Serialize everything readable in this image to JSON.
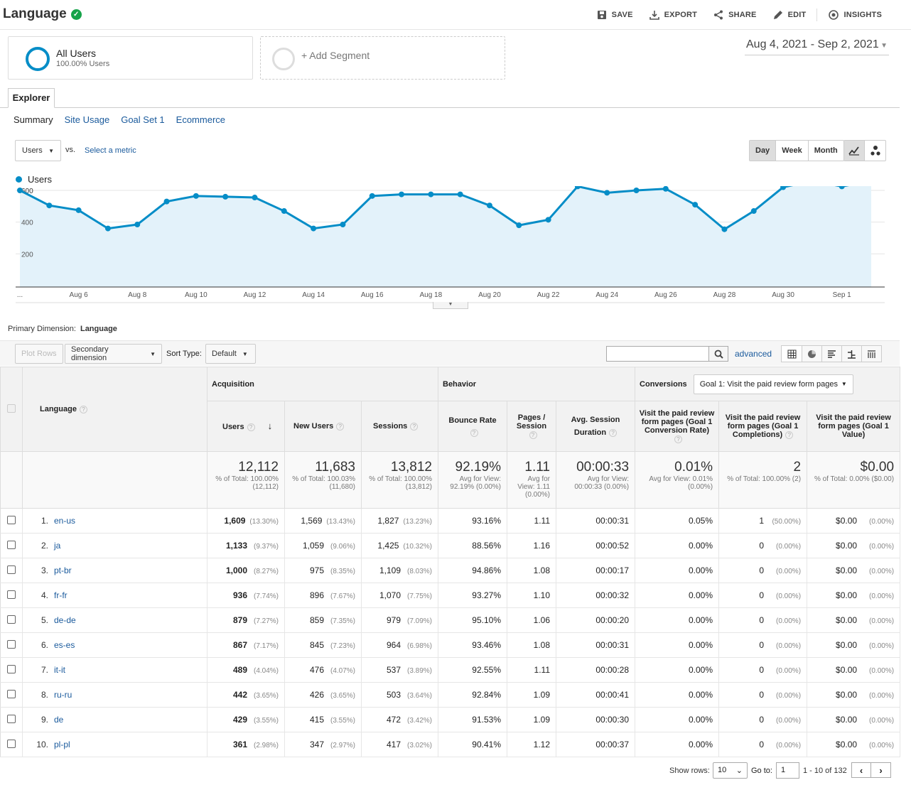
{
  "header": {
    "title": "Language",
    "actions": {
      "save": "SAVE",
      "export": "EXPORT",
      "share": "SHARE",
      "edit": "EDIT",
      "insights": "INSIGHTS"
    }
  },
  "segments": {
    "all_users": "All Users",
    "all_users_pct": "100.00% Users",
    "add": "+ Add Segment"
  },
  "date_range": "Aug 4, 2021 - Sep 2, 2021",
  "tabs": {
    "explorer": "Explorer",
    "sub": [
      "Summary",
      "Site Usage",
      "Goal Set 1",
      "Ecommerce"
    ]
  },
  "metric": {
    "selected": "Users",
    "vs": "vs.",
    "select": "Select a metric"
  },
  "period": [
    "Day",
    "Week",
    "Month"
  ],
  "chart_data": {
    "type": "line",
    "series": [
      {
        "name": "Users",
        "values": [
          600,
          505,
          475,
          360,
          385,
          530,
          565,
          560,
          555,
          470,
          360,
          385,
          565,
          575,
          575,
          575,
          505,
          380,
          415,
          625,
          585,
          600,
          610,
          510,
          355,
          470,
          620,
          660,
          625,
          660
        ]
      }
    ],
    "x": [
      "Aug 4",
      "Aug 5",
      "Aug 6",
      "Aug 7",
      "Aug 8",
      "Aug 9",
      "Aug 10",
      "Aug 11",
      "Aug 12",
      "Aug 13",
      "Aug 14",
      "Aug 15",
      "Aug 16",
      "Aug 17",
      "Aug 18",
      "Aug 19",
      "Aug 20",
      "Aug 21",
      "Aug 22",
      "Aug 23",
      "Aug 24",
      "Aug 25",
      "Aug 26",
      "Aug 27",
      "Aug 28",
      "Aug 29",
      "Aug 30",
      "Aug 31",
      "Sep 1",
      "Sep 2"
    ],
    "xticks": [
      "...",
      "Aug 6",
      "Aug 8",
      "Aug 10",
      "Aug 12",
      "Aug 14",
      "Aug 16",
      "Aug 18",
      "Aug 20",
      "Aug 22",
      "Aug 24",
      "Aug 26",
      "Aug 28",
      "Aug 30",
      "Sep 1"
    ],
    "yticks": [
      "600",
      "400",
      "200"
    ],
    "ylim": [
      0,
      600
    ],
    "color": "#058dc7",
    "fill": "#e3f2fa"
  },
  "toolbar": {
    "plot_rows": "Plot Rows",
    "secondary": "Secondary dimension",
    "sort_type": "Sort Type:",
    "sort_default": "Default",
    "advanced": "advanced"
  },
  "primary_dimension": {
    "label": "Primary Dimension:",
    "value": "Language"
  },
  "table": {
    "groups": {
      "acq": "Acquisition",
      "beh": "Behavior",
      "conv": "Conversions",
      "goal": "Goal 1: Visit the paid review form pages"
    },
    "cols": {
      "lang": "Language",
      "users": "Users",
      "new_users": "New Users",
      "sessions": "Sessions",
      "bounce": "Bounce Rate",
      "pps": "Pages / Session",
      "dur": "Avg. Session Duration",
      "cr": "Visit the paid review form pages (Goal 1 Conversion Rate)",
      "comp": "Visit the paid review form pages (Goal 1 Completions)",
      "val": "Visit the paid review form pages (Goal 1 Value)"
    },
    "totals": {
      "users": "12,112",
      "users_sub": "% of Total: 100.00% (12,112)",
      "new_users": "11,683",
      "new_users_sub": "% of Total: 100.03% (11,680)",
      "sessions": "13,812",
      "sessions_sub": "% of Total: 100.00% (13,812)",
      "bounce": "92.19%",
      "bounce_sub": "Avg for View: 92.19% (0.00%)",
      "pps": "1.11",
      "pps_sub": "Avg for View: 1.11 (0.00%)",
      "dur": "00:00:33",
      "dur_sub": "Avg for View: 00:00:33 (0.00%)",
      "cr": "0.01%",
      "cr_sub": "Avg for View: 0.01% (0.00%)",
      "comp": "2",
      "comp_sub": "% of Total: 100.00% (2)",
      "val": "$0.00",
      "val_sub": "% of Total: 0.00% ($0.00)"
    },
    "rows": [
      {
        "i": "1.",
        "lang": "en-us",
        "u": "1,609",
        "up": "(13.30%)",
        "nu": "1,569",
        "nup": "(13.43%)",
        "s": "1,827",
        "sp": "(13.23%)",
        "b": "93.16%",
        "p": "1.11",
        "d": "00:00:31",
        "cr": "0.05%",
        "c": "1",
        "cp": "(50.00%)",
        "v": "$0.00",
        "vp": "(0.00%)"
      },
      {
        "i": "2.",
        "lang": "ja",
        "u": "1,133",
        "up": "(9.37%)",
        "nu": "1,059",
        "nup": "(9.06%)",
        "s": "1,425",
        "sp": "(10.32%)",
        "b": "88.56%",
        "p": "1.16",
        "d": "00:00:52",
        "cr": "0.00%",
        "c": "0",
        "cp": "(0.00%)",
        "v": "$0.00",
        "vp": "(0.00%)"
      },
      {
        "i": "3.",
        "lang": "pt-br",
        "u": "1,000",
        "up": "(8.27%)",
        "nu": "975",
        "nup": "(8.35%)",
        "s": "1,109",
        "sp": "(8.03%)",
        "b": "94.86%",
        "p": "1.08",
        "d": "00:00:17",
        "cr": "0.00%",
        "c": "0",
        "cp": "(0.00%)",
        "v": "$0.00",
        "vp": "(0.00%)"
      },
      {
        "i": "4.",
        "lang": "fr-fr",
        "u": "936",
        "up": "(7.74%)",
        "nu": "896",
        "nup": "(7.67%)",
        "s": "1,070",
        "sp": "(7.75%)",
        "b": "93.27%",
        "p": "1.10",
        "d": "00:00:32",
        "cr": "0.00%",
        "c": "0",
        "cp": "(0.00%)",
        "v": "$0.00",
        "vp": "(0.00%)"
      },
      {
        "i": "5.",
        "lang": "de-de",
        "u": "879",
        "up": "(7.27%)",
        "nu": "859",
        "nup": "(7.35%)",
        "s": "979",
        "sp": "(7.09%)",
        "b": "95.10%",
        "p": "1.06",
        "d": "00:00:20",
        "cr": "0.00%",
        "c": "0",
        "cp": "(0.00%)",
        "v": "$0.00",
        "vp": "(0.00%)"
      },
      {
        "i": "6.",
        "lang": "es-es",
        "u": "867",
        "up": "(7.17%)",
        "nu": "845",
        "nup": "(7.23%)",
        "s": "964",
        "sp": "(6.98%)",
        "b": "93.46%",
        "p": "1.08",
        "d": "00:00:31",
        "cr": "0.00%",
        "c": "0",
        "cp": "(0.00%)",
        "v": "$0.00",
        "vp": "(0.00%)"
      },
      {
        "i": "7.",
        "lang": "it-it",
        "u": "489",
        "up": "(4.04%)",
        "nu": "476",
        "nup": "(4.07%)",
        "s": "537",
        "sp": "(3.89%)",
        "b": "92.55%",
        "p": "1.11",
        "d": "00:00:28",
        "cr": "0.00%",
        "c": "0",
        "cp": "(0.00%)",
        "v": "$0.00",
        "vp": "(0.00%)"
      },
      {
        "i": "8.",
        "lang": "ru-ru",
        "u": "442",
        "up": "(3.65%)",
        "nu": "426",
        "nup": "(3.65%)",
        "s": "503",
        "sp": "(3.64%)",
        "b": "92.84%",
        "p": "1.09",
        "d": "00:00:41",
        "cr": "0.00%",
        "c": "0",
        "cp": "(0.00%)",
        "v": "$0.00",
        "vp": "(0.00%)"
      },
      {
        "i": "9.",
        "lang": "de",
        "u": "429",
        "up": "(3.55%)",
        "nu": "415",
        "nup": "(3.55%)",
        "s": "472",
        "sp": "(3.42%)",
        "b": "91.53%",
        "p": "1.09",
        "d": "00:00:30",
        "cr": "0.00%",
        "c": "0",
        "cp": "(0.00%)",
        "v": "$0.00",
        "vp": "(0.00%)"
      },
      {
        "i": "10.",
        "lang": "pl-pl",
        "u": "361",
        "up": "(2.98%)",
        "nu": "347",
        "nup": "(2.97%)",
        "s": "417",
        "sp": "(3.02%)",
        "b": "90.41%",
        "p": "1.12",
        "d": "00:00:37",
        "cr": "0.00%",
        "c": "0",
        "cp": "(0.00%)",
        "v": "$0.00",
        "vp": "(0.00%)"
      }
    ]
  },
  "footer": {
    "show_rows": "Show rows:",
    "rows_value": "10",
    "goto": "Go to:",
    "goto_value": "1",
    "range": "1 - 10 of 132"
  }
}
